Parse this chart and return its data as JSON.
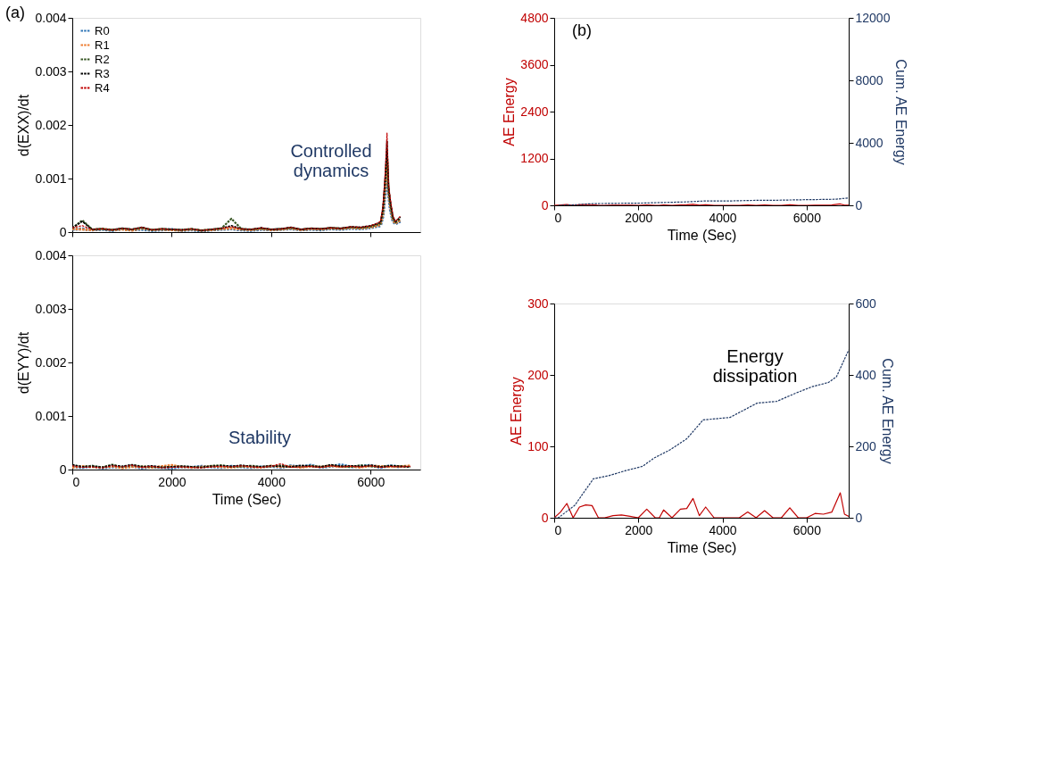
{
  "chart_data": [
    {
      "type": "line",
      "ylabel": "d(EXX)/dt",
      "annotations": [
        "(a)",
        "Controlled dynamics"
      ],
      "x": [
        0,
        200,
        400,
        600,
        800,
        1000,
        1200,
        1400,
        1600,
        1800,
        2000,
        2200,
        2400,
        2600,
        2800,
        3000,
        3200,
        3400,
        3600,
        3800,
        4000,
        4200,
        4400,
        4600,
        4800,
        5000,
        5200,
        5400,
        5600,
        5800,
        6000,
        6100,
        6200,
        6250,
        6300,
        6330,
        6360,
        6400,
        6450,
        6500,
        6550,
        6600
      ],
      "series": [
        {
          "name": "R0",
          "color": "#2e75b6",
          "values": [
            5e-05,
            6e-05,
            4e-05,
            5e-05,
            3e-05,
            6e-05,
            4e-05,
            5e-05,
            3e-05,
            4e-05,
            5e-05,
            3e-05,
            4e-05,
            2e-05,
            4e-05,
            5e-05,
            6e-05,
            4e-05,
            3e-05,
            5e-05,
            4e-05,
            5e-05,
            6e-05,
            4e-05,
            5e-05,
            4e-05,
            6e-05,
            5e-05,
            7e-05,
            6e-05,
            8e-05,
            0.0001,
            0.00012,
            0.0003,
            0.0008,
            0.0012,
            0.0007,
            0.0004,
            0.0002,
            0.00015,
            0.00018,
            0.0002
          ]
        },
        {
          "name": "R1",
          "color": "#ed7d31",
          "values": [
            6e-05,
            5e-05,
            4e-05,
            6e-05,
            4e-05,
            5e-05,
            3e-05,
            7e-05,
            4e-05,
            5e-05,
            4e-05,
            3e-05,
            5e-05,
            3e-05,
            4e-05,
            6e-05,
            7e-05,
            5e-05,
            4e-05,
            6e-05,
            4e-05,
            5e-05,
            7e-05,
            4e-05,
            6e-05,
            5e-05,
            7e-05,
            6e-05,
            8e-05,
            7e-05,
            9e-05,
            0.00011,
            0.00014,
            0.00035,
            0.0009,
            0.0014,
            0.00075,
            0.00045,
            0.00022,
            0.00016,
            0.0002,
            0.00022
          ]
        },
        {
          "name": "R2",
          "color": "#375623",
          "values": [
            7e-05,
            0.00022,
            5e-05,
            6e-05,
            4e-05,
            7e-05,
            5e-05,
            8e-05,
            4e-05,
            6e-05,
            5e-05,
            4e-05,
            6e-05,
            3e-05,
            5e-05,
            7e-05,
            0.00025,
            6e-05,
            5e-05,
            7e-05,
            5e-05,
            6e-05,
            8e-05,
            5e-05,
            7e-05,
            6e-05,
            8e-05,
            7e-05,
            9e-05,
            8e-05,
            0.0001,
            0.00013,
            0.00016,
            0.0004,
            0.001,
            0.0015,
            0.0008,
            0.0005,
            0.00025,
            0.00018,
            0.00022,
            0.00025
          ]
        },
        {
          "name": "R3",
          "color": "#000000",
          "values": [
            8e-05,
            0.0002,
            5e-05,
            6e-05,
            4e-05,
            7e-05,
            5e-05,
            9e-05,
            4e-05,
            6e-05,
            5e-05,
            4e-05,
            6e-05,
            3e-05,
            5e-05,
            7e-05,
            0.00012,
            6e-05,
            5e-05,
            8e-05,
            5e-05,
            6e-05,
            9e-05,
            5e-05,
            7e-05,
            6e-05,
            8e-05,
            7e-05,
            0.0001,
            9e-05,
            0.00012,
            0.00015,
            0.00018,
            0.00045,
            0.0011,
            0.0017,
            0.00085,
            0.00055,
            0.00028,
            0.0002,
            0.00024,
            0.00028
          ]
        },
        {
          "name": "R4",
          "color": "#c00000",
          "values": [
            8e-05,
            0.00012,
            5e-05,
            6e-05,
            4e-05,
            7e-05,
            5e-05,
            9e-05,
            4e-05,
            6e-05,
            5e-05,
            4e-05,
            6e-05,
            3e-05,
            5e-05,
            7e-05,
            0.0001,
            6e-05,
            5e-05,
            8e-05,
            5e-05,
            6e-05,
            9e-05,
            5e-05,
            7e-05,
            6e-05,
            8e-05,
            7e-05,
            0.0001,
            9e-05,
            0.00012,
            0.00015,
            0.0002,
            0.0005,
            0.0012,
            0.00185,
            0.0009,
            0.0006,
            0.0003,
            0.0002,
            0.00025,
            0.0003
          ]
        }
      ],
      "xlim": [
        0,
        7000
      ],
      "xticks": [
        0,
        2000,
        4000,
        6000
      ],
      "ylim": [
        0,
        0.004
      ],
      "yticks": [
        0,
        0.001,
        0.002,
        0.003,
        0.004
      ],
      "tick_labels": "y",
      "legend": "top left",
      "line_style": "dashed",
      "grid": false
    },
    {
      "type": "line",
      "ylabel": "d(EYY)/dt",
      "xlabel": "Time (Sec)",
      "annotations": [
        "Stability"
      ],
      "x": [
        0,
        200,
        400,
        600,
        800,
        1000,
        1200,
        1400,
        1600,
        1800,
        2000,
        2200,
        2400,
        2600,
        2800,
        3000,
        3200,
        3400,
        3600,
        3800,
        4000,
        4200,
        4400,
        4600,
        4800,
        5000,
        5200,
        5400,
        5600,
        5800,
        6000,
        6200,
        6400,
        6600,
        6800
      ],
      "series": [
        {
          "color": "#2e75b6",
          "values": [
            5e-05,
            4e-05,
            6e-05,
            3e-05,
            5e-05,
            4e-05,
            6e-05,
            3e-05,
            5e-05,
            4e-05,
            3e-05,
            5e-05,
            4e-05,
            6e-05,
            5e-05,
            4e-05,
            6e-05,
            5e-05,
            4e-05,
            5e-05,
            6e-05,
            4e-05,
            7e-05,
            5e-05,
            8e-05,
            4e-05,
            6e-05,
            9e-05,
            5e-05,
            6e-05,
            8e-05,
            4e-05,
            7e-05,
            5e-05,
            null
          ]
        },
        {
          "color": "#ed7d31",
          "values": [
            4e-05,
            6e-05,
            5e-05,
            4e-05,
            6e-05,
            3e-05,
            5e-05,
            5e-05,
            4e-05,
            6e-05,
            8e-05,
            5e-05,
            4e-05,
            5e-05,
            6e-05,
            5e-05,
            4e-05,
            6e-05,
            5e-05,
            4e-05,
            7e-05,
            5e-05,
            6e-05,
            4e-05,
            6e-05,
            5e-05,
            7e-05,
            5e-05,
            6e-05,
            4e-05,
            7e-05,
            6e-05,
            5e-05,
            6e-05,
            7e-05
          ]
        },
        {
          "color": "#375623",
          "values": [
            8e-05,
            5e-05,
            7e-05,
            4e-05,
            9e-05,
            5e-05,
            8e-05,
            6e-05,
            5e-05,
            4e-05,
            5e-05,
            6e-05,
            5e-05,
            4e-05,
            7e-05,
            8e-05,
            5e-05,
            6e-05,
            7e-05,
            5e-05,
            6e-05,
            8e-05,
            5e-05,
            6e-05,
            7e-05,
            5e-05,
            8e-05,
            6e-05,
            5e-05,
            8e-05,
            6e-05,
            5e-05,
            7e-05,
            6e-05,
            5e-05
          ]
        },
        {
          "color": "#000000",
          "values": [
            9e-05,
            5e-05,
            6e-05,
            4e-05,
            8e-05,
            6e-05,
            9e-05,
            5e-05,
            7e-05,
            4e-05,
            5e-05,
            6e-05,
            5e-05,
            4e-05,
            6e-05,
            7e-05,
            6e-05,
            8e-05,
            6e-05,
            5e-05,
            7e-05,
            6e-05,
            5e-05,
            8e-05,
            6e-05,
            5e-05,
            9e-05,
            6e-05,
            7e-05,
            6e-05,
            8e-05,
            5e-05,
            7e-05,
            6e-05,
            5e-05
          ]
        },
        {
          "color": "#c00000",
          "values": [
            7e-05,
            4e-05,
            5e-05,
            3e-05,
            7e-05,
            5e-05,
            8e-05,
            4e-05,
            6e-05,
            3e-05,
            4e-05,
            5e-05,
            4e-05,
            3e-05,
            5e-05,
            6e-05,
            5e-05,
            7e-05,
            5e-05,
            4e-05,
            6e-05,
            0.00011,
            4e-05,
            5e-05,
            6e-05,
            4e-05,
            7e-05,
            5e-05,
            6e-05,
            5e-05,
            7e-05,
            4e-05,
            6e-05,
            5e-05,
            6e-05
          ]
        }
      ],
      "xlim": [
        0,
        7000
      ],
      "xticks": [
        0,
        2000,
        4000,
        6000
      ],
      "ylim": [
        0,
        0.004
      ],
      "yticks": [
        0,
        0.001,
        0.002,
        0.003,
        0.004
      ],
      "line_style": "dashed",
      "grid": false
    },
    {
      "type": "line",
      "ylabel": "AE Energy",
      "y2label": "Cum. AE Energy",
      "xlabel": "Time (Sec)",
      "annotations": [
        "(b)"
      ],
      "series": [
        {
          "color": "#c00000",
          "line_style": "solid",
          "x": [
            0,
            150,
            300,
            450,
            600,
            750,
            900,
            1050,
            1200,
            1400,
            1600,
            1800,
            2000,
            2200,
            2400,
            2500,
            2600,
            2800,
            3000,
            3150,
            3300,
            3450,
            3600,
            3800,
            4000,
            4200,
            4400,
            4600,
            4800,
            5000,
            5200,
            5400,
            5600,
            5800,
            6000,
            6200,
            6400,
            6600,
            6800,
            6900,
            7000
          ],
          "values": [
            0,
            8,
            20,
            0,
            15,
            18,
            17,
            0,
            0,
            3,
            4,
            2,
            0,
            12,
            0,
            0,
            11,
            0,
            12,
            13,
            27,
            3,
            15,
            0,
            0,
            0,
            0,
            8,
            0,
            10,
            0,
            0,
            14,
            0,
            0,
            6,
            5,
            8,
            35,
            5,
            2
          ]
        },
        {
          "color": "#1f3864",
          "line_style": "dashed",
          "axis": "y2",
          "x": [
            100,
            490,
            930,
            1300,
            1700,
            2100,
            2370,
            2750,
            3150,
            3540,
            4180,
            4820,
            5290,
            5740,
            6130,
            6520,
            6710,
            7000
          ],
          "values": [
            0,
            35,
            109,
            118,
            132,
            144,
            167,
            190,
            221,
            274,
            281,
            321,
            326,
            349,
            367,
            379,
            395,
            470
          ]
        }
      ],
      "xlim": [
        0,
        7000
      ],
      "xticks": [
        0,
        2000,
        4000,
        6000
      ],
      "ylim": [
        0,
        4800
      ],
      "yticks": [
        0,
        1200,
        2400,
        3600,
        4800
      ],
      "y2lim": [
        0,
        12000
      ],
      "y2ticks": [
        0,
        4000,
        8000,
        12000
      ],
      "grid": false
    },
    {
      "type": "line",
      "ylabel": "AE Energy",
      "y2label": "Cum. AE Energy",
      "xlabel": "Time (Sec)",
      "annotations": [
        "Energy dissipation"
      ],
      "series": [
        {
          "color": "#c00000",
          "line_style": "solid",
          "x": [
            0,
            150,
            300,
            450,
            600,
            750,
            900,
            1050,
            1200,
            1400,
            1600,
            1800,
            2000,
            2200,
            2400,
            2500,
            2600,
            2800,
            3000,
            3150,
            3300,
            3450,
            3600,
            3800,
            4000,
            4200,
            4400,
            4600,
            4800,
            5000,
            5200,
            5400,
            5600,
            5800,
            6000,
            6200,
            6400,
            6600,
            6800,
            6900,
            7000
          ],
          "values": [
            0,
            8,
            20,
            0,
            15,
            18,
            17,
            0,
            0,
            3,
            4,
            2,
            0,
            12,
            0,
            0,
            11,
            0,
            12,
            13,
            27,
            3,
            15,
            0,
            0,
            0,
            0,
            8,
            0,
            10,
            0,
            0,
            14,
            0,
            0,
            6,
            5,
            8,
            35,
            5,
            2
          ]
        },
        {
          "color": "#1f3864",
          "line_style": "dashed",
          "axis": "y2",
          "x": [
            0,
            100,
            490,
            930,
            1300,
            1700,
            2100,
            2370,
            2750,
            3150,
            3540,
            4180,
            4820,
            5290,
            5740,
            6130,
            6520,
            6710,
            7000
          ],
          "values": [
            0,
            0,
            35,
            109,
            118,
            132,
            144,
            167,
            190,
            221,
            274,
            281,
            321,
            326,
            349,
            367,
            379,
            395,
            470
          ]
        }
      ],
      "xlim": [
        0,
        7000
      ],
      "xticks": [
        0,
        2000,
        4000,
        6000
      ],
      "ylim": [
        0,
        300
      ],
      "yticks": [
        0,
        100,
        200,
        300
      ],
      "y2lim": [
        0,
        600
      ],
      "y2ticks": [
        0,
        200,
        400,
        600
      ],
      "grid": false
    }
  ]
}
